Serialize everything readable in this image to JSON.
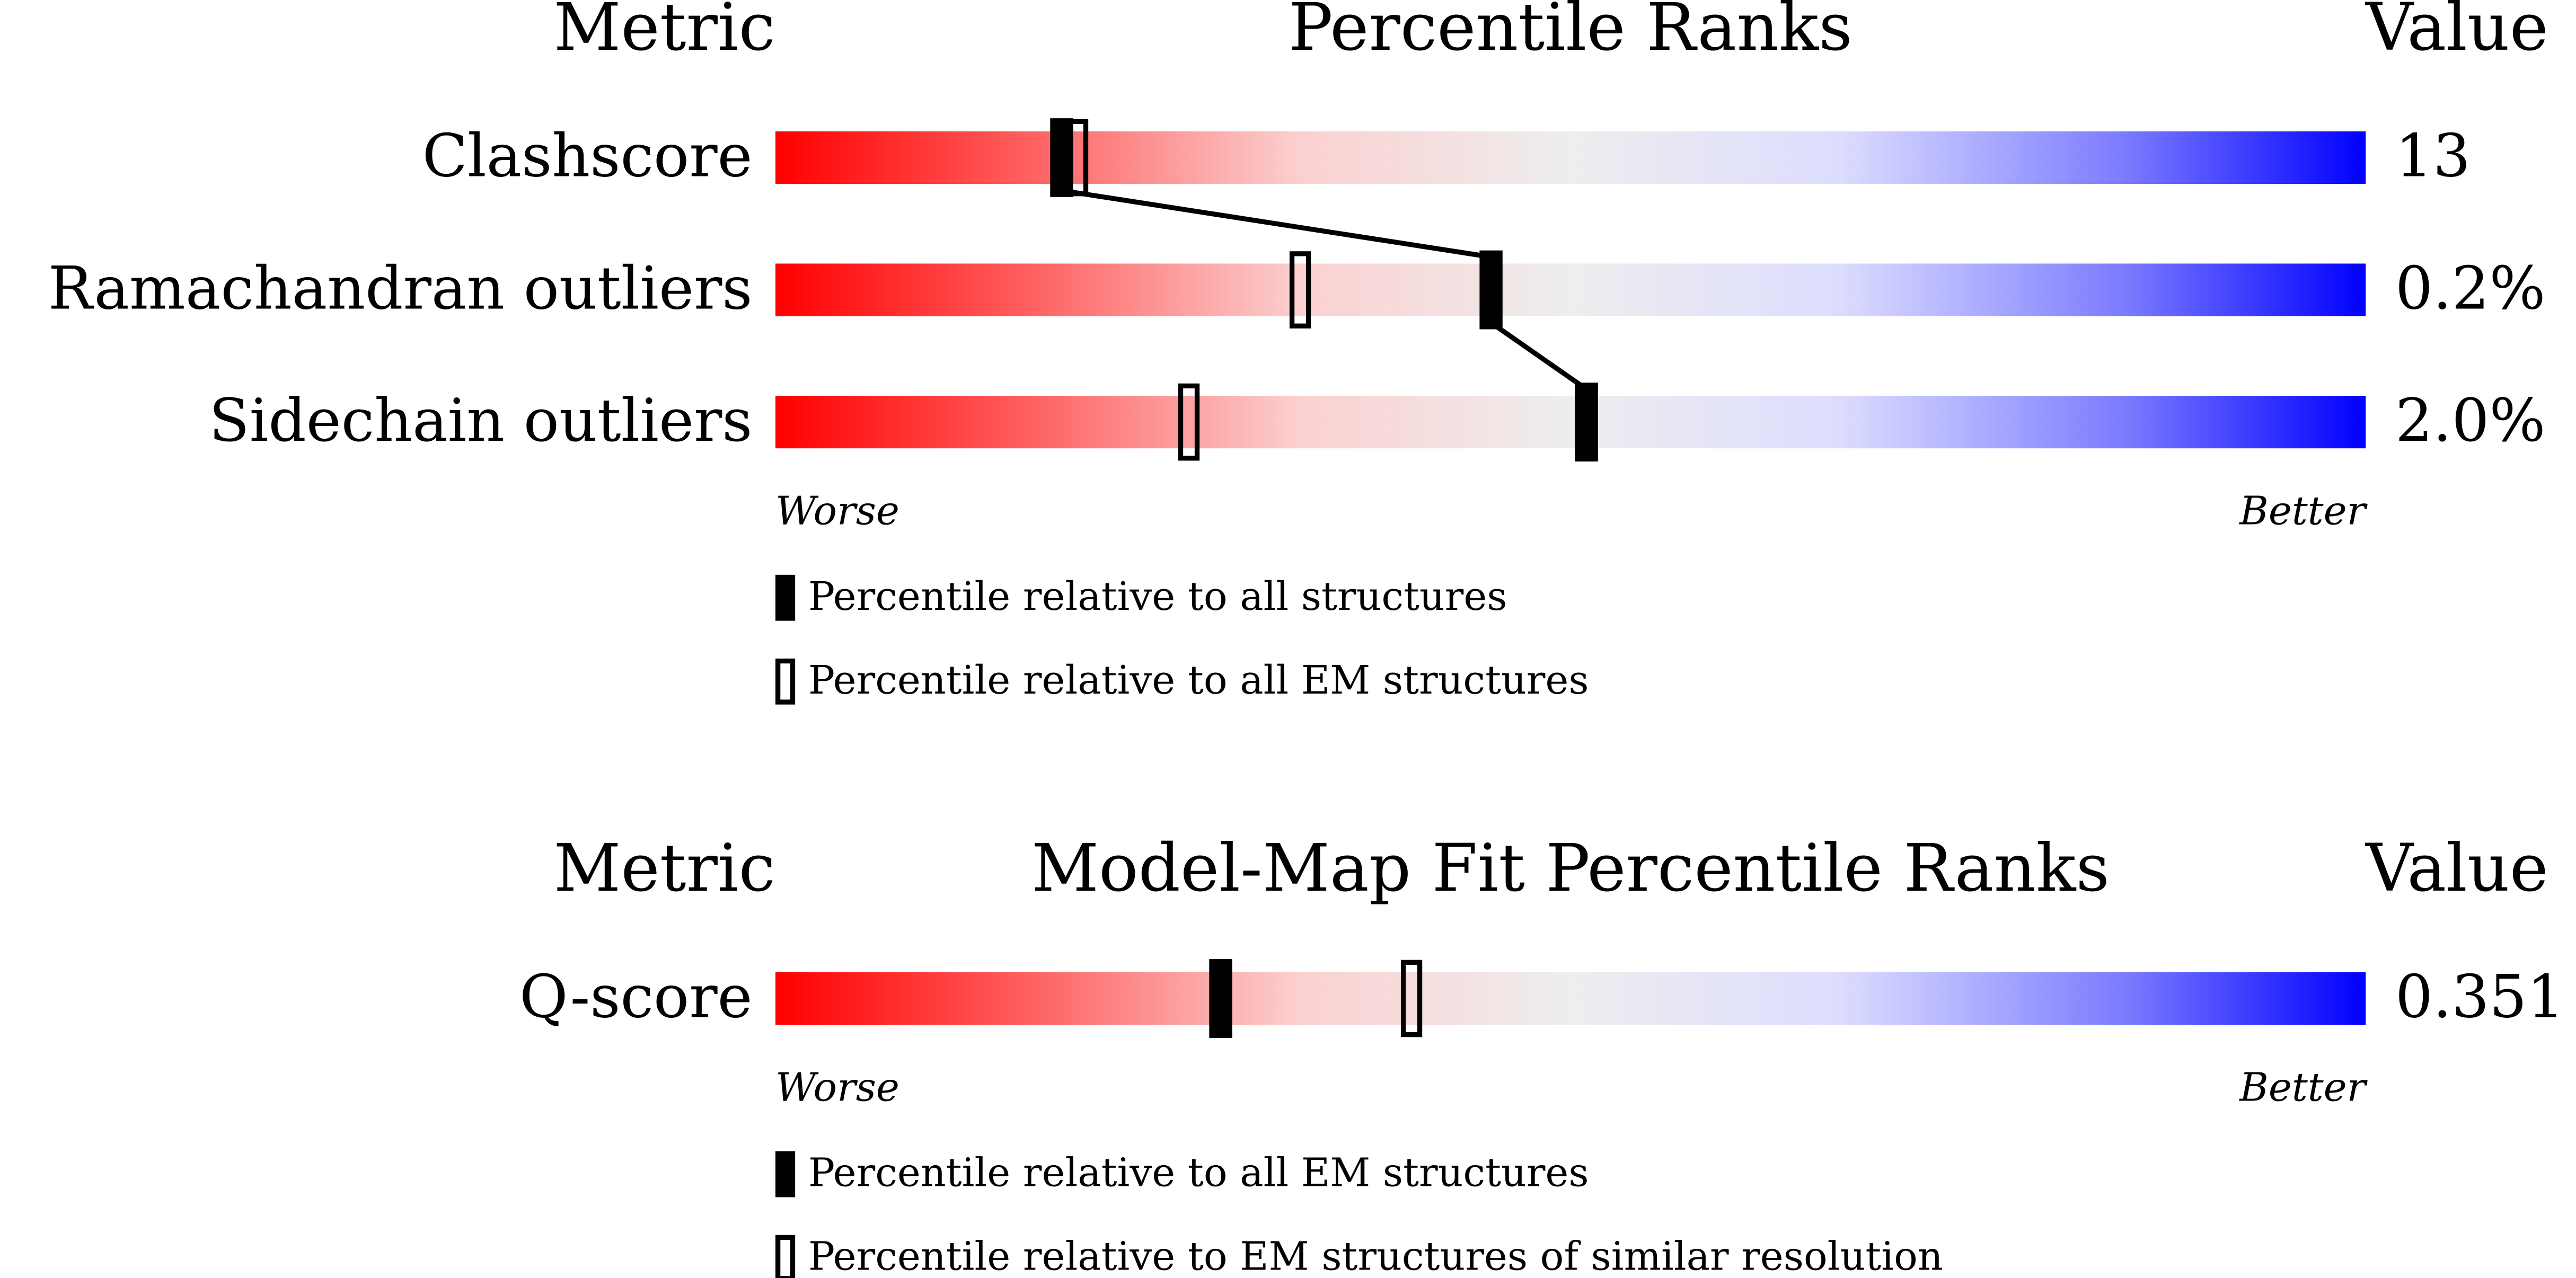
{
  "chart_data": [
    {
      "type": "percentile-slider",
      "header": {
        "metric": "Metric",
        "title": "Percentile Ranks",
        "value": "Value"
      },
      "categories": [
        "Clashscore",
        "Ramachandran outliers",
        "Sidechain outliers"
      ],
      "metric_values": [
        "13",
        "0.2%",
        "2.0%"
      ],
      "series": [
        {
          "name": "Percentile relative to all structures",
          "color": "#000000",
          "style": "filled",
          "values": [
            18,
            45,
            51
          ]
        },
        {
          "name": "Percentile relative to all EM structures",
          "color": "#000000",
          "style": "open",
          "values": [
            19,
            33,
            26
          ]
        }
      ],
      "xlim": [
        0,
        100
      ],
      "axis_ends": [
        "Worse",
        "Better"
      ]
    },
    {
      "type": "percentile-slider",
      "header": {
        "metric": "Metric",
        "title": "Model-Map Fit Percentile Ranks",
        "value": "Value"
      },
      "categories": [
        "Q-score"
      ],
      "metric_values": [
        "0.351"
      ],
      "series": [
        {
          "name": "Percentile relative to all EM structures",
          "color": "#000000",
          "style": "filled",
          "values": [
            28
          ]
        },
        {
          "name": "Percentile relative to EM structures of similar resolution",
          "color": "#000000",
          "style": "open",
          "values": [
            40
          ]
        }
      ],
      "xlim": [
        0,
        100
      ],
      "axis_ends": [
        "Worse",
        "Better"
      ]
    }
  ]
}
